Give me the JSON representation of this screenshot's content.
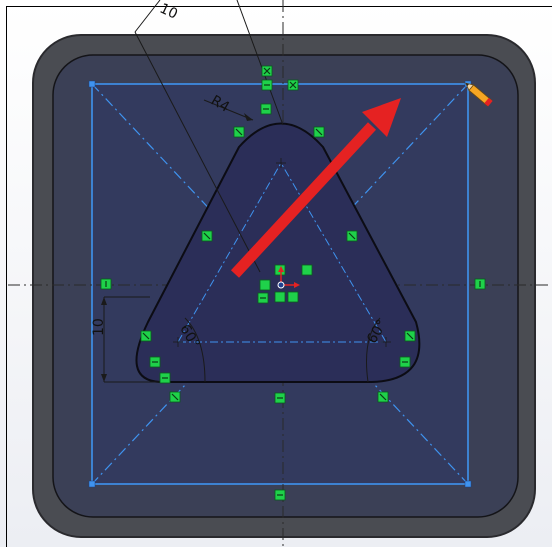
{
  "sketch": {
    "dimensions": {
      "radius": "R4",
      "height": "10",
      "angle_left": "60°",
      "angle_right": "60°",
      "top_cut": "10"
    },
    "colors": {
      "part_outer": "#4a4c52",
      "part_inner": "#3a3f55",
      "triangle_fill": "#2a2d55",
      "construction_line": "#3a8ee8",
      "relation_icon": "#1fd14a",
      "arrow": "#e52222"
    },
    "icons": [
      "pencil-icon",
      "coincident-relation-icon",
      "horizontal-relation-icon",
      "vertical-relation-icon",
      "tangent-relation-icon",
      "origin-icon"
    ]
  }
}
